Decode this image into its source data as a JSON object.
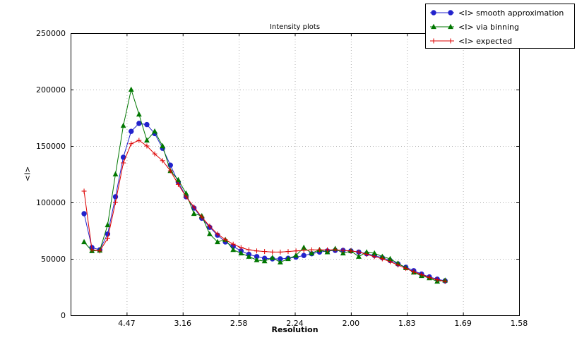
{
  "chart_data": {
    "type": "line",
    "title": "Intensity plots",
    "xlabel": "Resolution",
    "ylabel": "<I>",
    "grid": true,
    "legend_position": "top-right-outside",
    "x_axis": {
      "unit": "1/d^2",
      "range": [
        0,
        0.4
      ],
      "ticks": [
        0.05,
        0.1,
        0.15,
        0.2,
        0.25,
        0.3,
        0.35,
        0.4
      ],
      "tick_labels": [
        "4.47",
        "3.16",
        "2.58",
        "2.24",
        "2.00",
        "1.83",
        "1.69",
        "1.58"
      ]
    },
    "y_axis": {
      "range": [
        0,
        250000
      ],
      "ticks": [
        0,
        50000,
        100000,
        150000,
        200000,
        250000
      ],
      "tick_labels": [
        "0",
        "50000",
        "100000",
        "150000",
        "200000",
        "250000"
      ]
    },
    "x": [
      0.012,
      0.019,
      0.026,
      0.033,
      0.04,
      0.047,
      0.054,
      0.061,
      0.068,
      0.075,
      0.082,
      0.089,
      0.096,
      0.103,
      0.11,
      0.117,
      0.124,
      0.131,
      0.138,
      0.145,
      0.152,
      0.159,
      0.166,
      0.173,
      0.18,
      0.187,
      0.194,
      0.201,
      0.208,
      0.215,
      0.222,
      0.229,
      0.236,
      0.243,
      0.25,
      0.257,
      0.264,
      0.271,
      0.278,
      0.285,
      0.292,
      0.299,
      0.306,
      0.313,
      0.32,
      0.327,
      0.334
    ],
    "series": [
      {
        "name": "<I> smooth approximation",
        "color": "#2222cc",
        "marker": "circle",
        "values": [
          90000,
          60000,
          58000,
          72000,
          105000,
          140000,
          163000,
          170000,
          169000,
          161000,
          148000,
          133000,
          118000,
          105000,
          95000,
          86000,
          78000,
          71000,
          65000,
          61000,
          57000,
          54000,
          52000,
          50500,
          50000,
          50000,
          50500,
          51500,
          53000,
          54500,
          56000,
          57000,
          57500,
          57500,
          57000,
          56000,
          54500,
          53000,
          51000,
          48500,
          45500,
          42500,
          39500,
          36500,
          34000,
          32000,
          30500
        ]
      },
      {
        "name": "<I> via binning",
        "color": "#007700",
        "marker": "triangle",
        "values": [
          65000,
          57000,
          57500,
          80000,
          125000,
          168000,
          200000,
          178000,
          155000,
          163000,
          150000,
          128000,
          120000,
          108000,
          90000,
          88000,
          72000,
          65000,
          67000,
          58000,
          55000,
          52000,
          49000,
          48000,
          51000,
          47000,
          50000,
          53000,
          60000,
          55000,
          58000,
          56000,
          59000,
          55000,
          57000,
          52000,
          56000,
          55000,
          52000,
          50000,
          46000,
          42000,
          38000,
          35000,
          33000,
          30000,
          31000
        ]
      },
      {
        "name": "<I> expected",
        "color": "#dd0000",
        "marker": "plus",
        "values": [
          110000,
          58000,
          57000,
          68000,
          100000,
          135000,
          152000,
          155000,
          150000,
          143000,
          137000,
          128000,
          116000,
          105000,
          96000,
          87000,
          79000,
          72000,
          67000,
          63000,
          60000,
          58000,
          57000,
          56500,
          56000,
          56000,
          56500,
          57000,
          57500,
          58000,
          58000,
          58000,
          58000,
          57500,
          57000,
          56000,
          54000,
          52000,
          50000,
          47500,
          44500,
          41500,
          38500,
          36000,
          33500,
          31500,
          30000
        ]
      }
    ],
    "colors": {
      "grid": "#b0b0b0",
      "axis": "#000000",
      "background": "#ffffff"
    }
  }
}
